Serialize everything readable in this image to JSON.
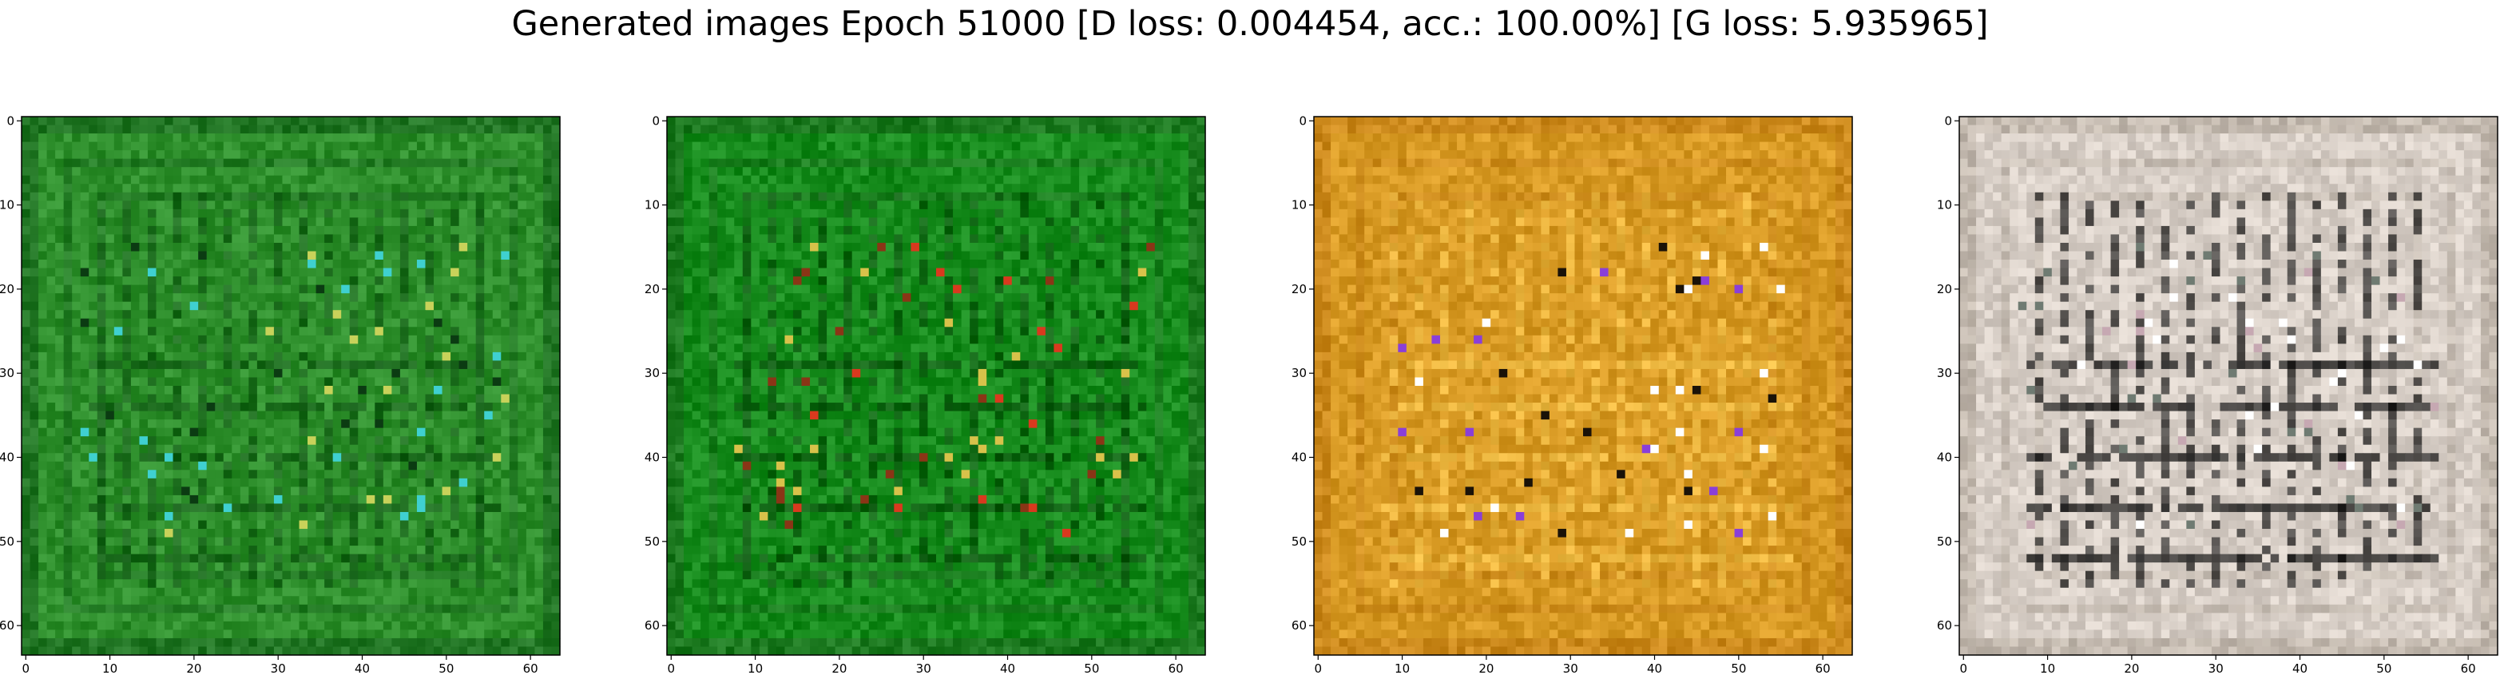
{
  "figure": {
    "title": "Generated images Epoch 51000 [D loss: 0.004454, acc.: 100.00%] [G loss: 5.935965]"
  },
  "axes": {
    "x_ticks": [
      "0",
      "10",
      "20",
      "30",
      "40",
      "50",
      "60"
    ],
    "y_ticks": [
      "0",
      "10",
      "20",
      "30",
      "40",
      "50",
      "60"
    ],
    "x_tick_values": [
      0,
      10,
      20,
      30,
      40,
      50,
      60
    ],
    "y_tick_values": [
      0,
      10,
      20,
      30,
      40,
      50,
      60
    ],
    "xlim": [
      -0.5,
      63.5
    ],
    "ylim": [
      63.5,
      -0.5
    ]
  },
  "panels": [
    {
      "name": "generated-image-1",
      "base_color": "#2e8f2c",
      "frame_color": "#1e6f22",
      "line_color": "#145c17",
      "accent_colors": [
        "#3fd0d0",
        "#c8d25a",
        "#0b3b12"
      ]
    },
    {
      "name": "generated-image-2",
      "base_color": "#178c1d",
      "frame_color": "#1d7420",
      "line_color": "#0d5510",
      "accent_colors": [
        "#d9391e",
        "#d8c24a",
        "#8a3516"
      ]
    },
    {
      "name": "generated-image-3",
      "base_color": "#d89a24",
      "frame_color": "#c9851a",
      "line_color": "#f2c14a",
      "accent_colors": [
        "#1a1208",
        "#8a3fd8",
        "#ffffff"
      ]
    },
    {
      "name": "generated-image-4",
      "base_color": "#d8cfc7",
      "frame_color": "#bfb5aa",
      "line_color": "#111111",
      "accent_colors": [
        "#ffffff",
        "#6f7b72",
        "#c6a8b2"
      ]
    }
  ]
}
